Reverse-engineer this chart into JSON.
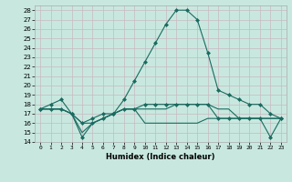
{
  "title": "",
  "xlabel": "Humidex (Indice chaleur)",
  "xlim": [
    -0.5,
    23.5
  ],
  "ylim": [
    14,
    28.5
  ],
  "yticks": [
    14,
    15,
    16,
    17,
    18,
    19,
    20,
    21,
    22,
    23,
    24,
    25,
    26,
    27,
    28
  ],
  "xticks": [
    0,
    1,
    2,
    3,
    4,
    5,
    6,
    7,
    8,
    9,
    10,
    11,
    12,
    13,
    14,
    15,
    16,
    17,
    18,
    19,
    20,
    21,
    22,
    23
  ],
  "xtick_labels": [
    "0",
    "1",
    "2",
    "3",
    "4",
    "5",
    "6",
    "7",
    "8",
    "9",
    "10",
    "11",
    "12",
    "13",
    "14",
    "15",
    "16",
    "17",
    "18",
    "19",
    "20",
    "21",
    "22",
    "23"
  ],
  "bg_color": "#c8e8df",
  "grid_color": "#d8eeea",
  "line_color": "#1a6b60",
  "lines": [
    {
      "x": [
        0,
        1,
        2,
        3,
        4,
        5,
        6,
        7,
        8,
        9,
        10,
        11,
        12,
        13,
        14,
        15,
        16,
        17,
        18,
        19,
        20,
        21,
        22,
        23
      ],
      "y": [
        17.5,
        18.0,
        18.5,
        17.0,
        16.0,
        16.5,
        17.0,
        17.0,
        18.5,
        20.5,
        22.5,
        24.5,
        26.5,
        28.0,
        28.0,
        27.0,
        23.5,
        19.5,
        19.0,
        18.5,
        18.0,
        18.0,
        17.0,
        16.5
      ],
      "marker": "D",
      "markersize": 2.0
    },
    {
      "x": [
        0,
        1,
        2,
        3,
        4,
        5,
        6,
        7,
        8,
        9,
        10,
        11,
        12,
        13,
        14,
        15,
        16,
        17,
        18,
        19,
        20,
        21,
        22,
        23
      ],
      "y": [
        17.5,
        17.5,
        17.5,
        17.0,
        15.0,
        16.0,
        16.5,
        17.0,
        17.5,
        17.5,
        17.5,
        17.5,
        17.5,
        18.0,
        18.0,
        18.0,
        18.0,
        17.5,
        17.5,
        16.5,
        16.5,
        16.5,
        16.5,
        16.5
      ],
      "marker": null,
      "markersize": 0
    },
    {
      "x": [
        0,
        1,
        2,
        3,
        4,
        5,
        6,
        7,
        8,
        9,
        10,
        11,
        12,
        13,
        14,
        15,
        16,
        17,
        18,
        19,
        20,
        21,
        22,
        23
      ],
      "y": [
        17.5,
        17.5,
        17.5,
        17.0,
        14.5,
        16.0,
        16.5,
        17.0,
        17.5,
        17.5,
        18.0,
        18.0,
        18.0,
        18.0,
        18.0,
        18.0,
        18.0,
        16.5,
        16.5,
        16.5,
        16.5,
        16.5,
        14.5,
        16.5
      ],
      "marker": "D",
      "markersize": 2.0
    },
    {
      "x": [
        0,
        1,
        2,
        3,
        4,
        5,
        6,
        7,
        8,
        9,
        10,
        11,
        12,
        13,
        14,
        15,
        16,
        17,
        18,
        19,
        20,
        21,
        22,
        23
      ],
      "y": [
        17.5,
        17.5,
        17.5,
        17.0,
        16.0,
        16.0,
        16.5,
        17.0,
        17.5,
        17.5,
        16.0,
        16.0,
        16.0,
        16.0,
        16.0,
        16.0,
        16.5,
        16.5,
        16.5,
        16.5,
        16.5,
        16.5,
        16.5,
        16.5
      ],
      "marker": null,
      "markersize": 0
    }
  ]
}
